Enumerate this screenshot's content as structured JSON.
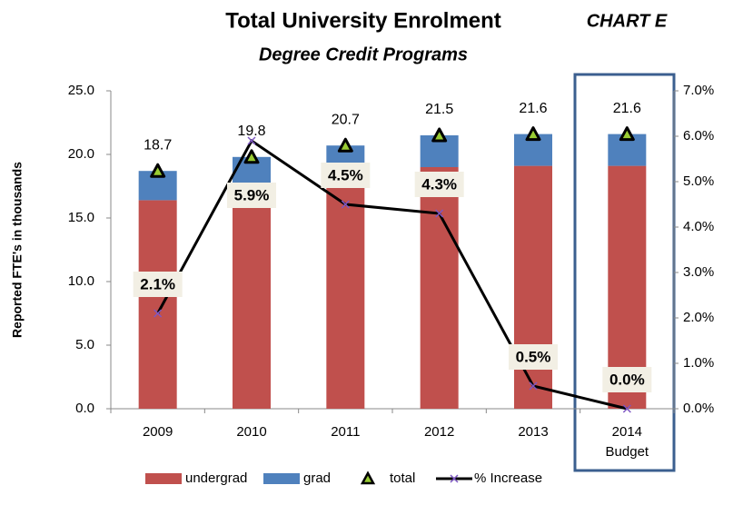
{
  "chart_data": {
    "type": "bar",
    "title": "Total University Enrolment",
    "subtitle": "Degree Credit Programs",
    "annotation": "CHART E",
    "y_label": "Reported  FTE's in thousands",
    "categories": [
      "2009",
      "2010",
      "2011",
      "2012",
      "2013",
      "2014 Budget"
    ],
    "stacked": true,
    "series": [
      {
        "name": "undergrad",
        "type": "bar",
        "color": "#c0504d",
        "values": [
          16.4,
          17.3,
          17.4,
          19.0,
          19.1,
          19.1
        ]
      },
      {
        "name": "grad",
        "type": "bar",
        "color": "#4f81bd",
        "values": [
          2.3,
          2.5,
          3.3,
          2.5,
          2.5,
          2.5
        ]
      },
      {
        "name": "total",
        "type": "marker",
        "color": "#000000",
        "values": [
          18.7,
          19.8,
          20.7,
          21.5,
          21.6,
          21.6
        ],
        "value_labels": [
          "18.7",
          "19.8",
          "20.7",
          "21.5",
          "21.6",
          "21.6"
        ]
      },
      {
        "name": "% Increase",
        "type": "line",
        "axis": "y2",
        "color": "#000000",
        "marker_color": "#7e57c2",
        "values": [
          2.1,
          5.9,
          4.5,
          4.3,
          0.5,
          0.0
        ],
        "value_labels": [
          "2.1%",
          "5.9%",
          "4.5%",
          "4.3%",
          "0.5%",
          "0.0%"
        ]
      }
    ],
    "ylim": [
      0,
      25
    ],
    "yticks": [
      {
        "value": 0,
        "label": "0.0"
      },
      {
        "value": 5,
        "label": "5.0"
      },
      {
        "value": 10,
        "label": "10.0"
      },
      {
        "value": 15,
        "label": "15.0"
      },
      {
        "value": 20,
        "label": "20.0"
      },
      {
        "value": 25,
        "label": "25.0"
      }
    ],
    "y2lim": [
      0,
      7
    ],
    "y2ticks": [
      {
        "value": 0,
        "label": "0.0%"
      },
      {
        "value": 1,
        "label": "1.0%"
      },
      {
        "value": 2,
        "label": "2.0%"
      },
      {
        "value": 3,
        "label": "3.0%"
      },
      {
        "value": 4,
        "label": "4.0%"
      },
      {
        "value": 5,
        "label": "5.0%"
      },
      {
        "value": 6,
        "label": "6.0%"
      },
      {
        "value": 7,
        "label": "7.0%"
      }
    ],
    "grid": false,
    "legend": "bottom"
  }
}
